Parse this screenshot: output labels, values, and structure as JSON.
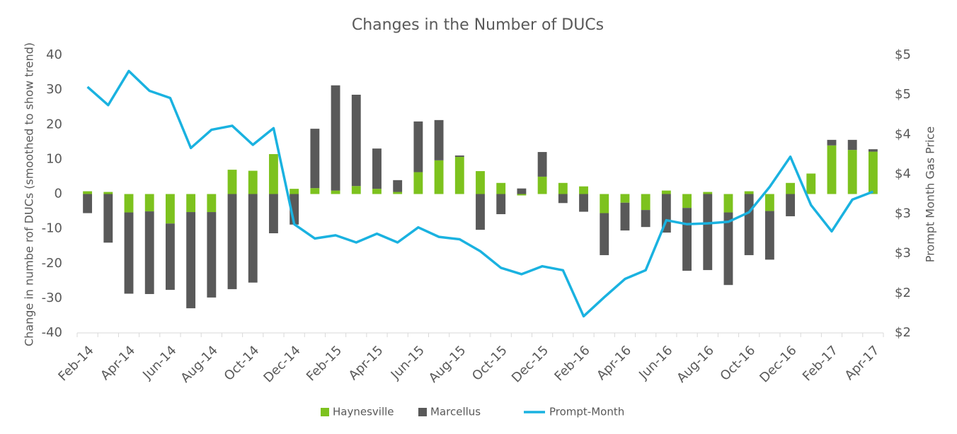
{
  "chart_data": {
    "type": "bar",
    "title": "Changes in the Number of DUCs",
    "y_label": "Change in numbe rof DUCs (smoothed to show trend)",
    "y2_label": "Prompt Month Gas Price",
    "categories": [
      "Feb-14",
      null,
      "Apr-14",
      null,
      "Jun-14",
      null,
      "Aug-14",
      null,
      "Oct-14",
      null,
      "Dec-14",
      null,
      "Feb-15",
      null,
      "Apr-15",
      null,
      "Jun-15",
      null,
      "Aug-15",
      null,
      "Oct-15",
      null,
      "Dec-15",
      null,
      "Feb-16",
      null,
      "Apr-16",
      null,
      "Jun-16",
      null,
      "Aug-16",
      null,
      "Oct-16",
      null,
      "Dec-16",
      null,
      "Feb-17",
      null,
      "Apr-17"
    ],
    "series": [
      {
        "name": "Haynesville",
        "type": "bar",
        "color": "#7dc21e",
        "values": [
          0.8,
          0.6,
          -5.3,
          -5,
          -8.5,
          -5.2,
          -5.2,
          7,
          6.7,
          11.5,
          1.5,
          1.7,
          1,
          2.3,
          1.5,
          0.6,
          6.3,
          9.7,
          10.7,
          6.6,
          3.2,
          -0.4,
          5,
          3.2,
          2.2,
          -5.5,
          -2.5,
          -4.6,
          1,
          -4,
          0.6,
          -5.3,
          0.8,
          -4.9,
          3.2,
          5.9,
          14,
          12.7,
          12.2
        ]
      },
      {
        "name": "Marcellus",
        "type": "bar",
        "color": "#595959",
        "values": [
          -5.5,
          -14,
          -23.4,
          -23.8,
          -19.1,
          -27.7,
          -24.6,
          -27.4,
          -25.5,
          -11.3,
          -8.8,
          17.1,
          30.3,
          26.3,
          11.6,
          3.4,
          14.6,
          11.6,
          0.4,
          -10.3,
          -5.8,
          1.6,
          7.1,
          -2.6,
          -5.1,
          -12.1,
          -8,
          -4.9,
          -11.1,
          -18.1,
          -21.9,
          -20.9,
          -17.6,
          -14,
          -6.4,
          0,
          1.6,
          2.9,
          0.7
        ]
      },
      {
        "name": "Prompt-Month",
        "type": "line",
        "axis": "y2",
        "color": "#1ab2e0",
        "values": [
          4.6,
          4.37,
          4.8,
          4.55,
          4.46,
          3.83,
          4.06,
          4.11,
          3.87,
          4.08,
          2.87,
          2.69,
          2.73,
          2.64,
          2.75,
          2.64,
          2.83,
          2.71,
          2.68,
          2.53,
          2.32,
          2.24,
          2.34,
          2.29,
          1.71,
          1.95,
          2.18,
          2.29,
          2.92,
          2.87,
          2.88,
          2.9,
          3.02,
          3.34,
          3.72,
          3.11,
          2.78,
          3.18,
          3.28
        ]
      }
    ],
    "ylim": [
      -40,
      40
    ],
    "yticks": [
      -40,
      -30,
      -20,
      -10,
      0,
      10,
      20,
      30,
      40
    ],
    "y2lim": [
      1.5,
      5
    ],
    "y2ticks": [
      {
        "value": 1.5,
        "label": "$2"
      },
      {
        "value": 2,
        "label": "$2"
      },
      {
        "value": 2.5,
        "label": "$3"
      },
      {
        "value": 3,
        "label": "$3"
      },
      {
        "value": 3.5,
        "label": "$4"
      },
      {
        "value": 4,
        "label": "$4"
      },
      {
        "value": 4.5,
        "label": "$5"
      },
      {
        "value": 5,
        "label": "$5"
      }
    ],
    "grid": false,
    "legend": "bottom"
  }
}
